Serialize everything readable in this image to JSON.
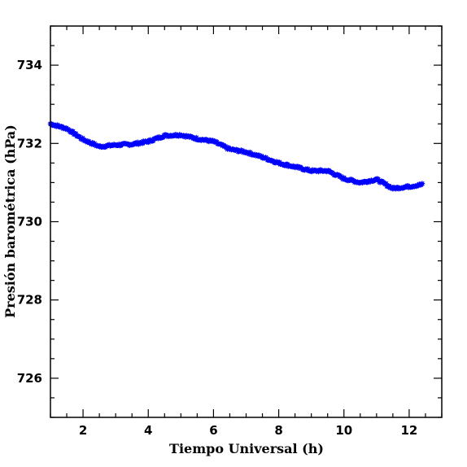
{
  "chart_data": {
    "type": "scatter",
    "title": "",
    "xlabel": "Tiempo Universal (h)",
    "ylabel": "Presión barométrica (hPa)",
    "xlim": [
      1.0,
      13.0
    ],
    "ylim": [
      725.0,
      735.0
    ],
    "xticks": [
      2,
      4,
      6,
      8,
      10,
      12
    ],
    "yticks": [
      726,
      728,
      730,
      732,
      734
    ],
    "grid": false,
    "marker_color": "#0000ff",
    "series": [
      {
        "x": [
          1.0,
          1.5,
          2.0,
          2.5,
          3.0,
          3.5,
          4.0,
          4.5,
          5.0,
          5.5,
          6.0,
          6.5,
          7.0,
          7.5,
          8.0,
          8.5,
          9.0,
          9.5,
          10.0,
          10.5,
          11.0,
          11.5,
          12.0,
          12.4
        ],
        "y": [
          732.5,
          732.38,
          732.1,
          731.92,
          731.96,
          731.98,
          732.05,
          732.2,
          732.22,
          732.12,
          732.05,
          731.85,
          731.78,
          731.65,
          731.5,
          731.4,
          731.3,
          731.3,
          731.1,
          731.0,
          731.08,
          730.85,
          730.9,
          730.95
        ]
      }
    ]
  }
}
